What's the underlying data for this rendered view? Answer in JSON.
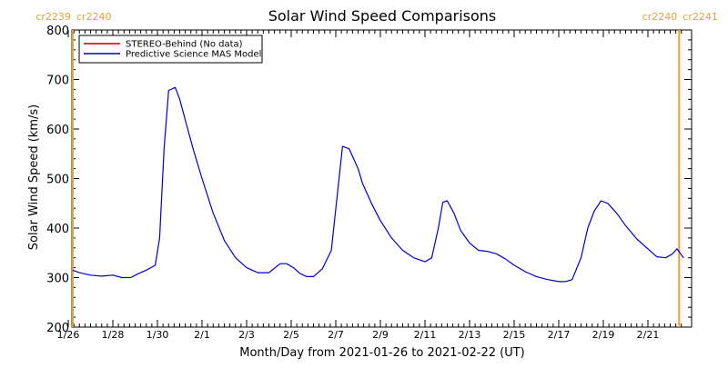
{
  "chart_data": {
    "type": "line",
    "title": "Solar Wind Speed Comparisons",
    "xlabel": "Month/Day from 2021-01-26 to 2021-02-22 (UT)",
    "ylabel": "Solar Wind Speed (km/s)",
    "ylim": [
      200,
      800
    ],
    "xlim_days": [
      0,
      27.6
    ],
    "y_ticks": [
      "200",
      "300",
      "400",
      "500",
      "600",
      "700",
      "800"
    ],
    "x_ticks": [
      {
        "day": 0,
        "label": "1/26"
      },
      {
        "day": 2,
        "label": "1/28"
      },
      {
        "day": 4,
        "label": "1/30"
      },
      {
        "day": 6,
        "label": "2/1"
      },
      {
        "day": 8,
        "label": "2/3"
      },
      {
        "day": 10,
        "label": "2/5"
      },
      {
        "day": 12,
        "label": "2/7"
      },
      {
        "day": 14,
        "label": "2/9"
      },
      {
        "day": 16,
        "label": "2/11"
      },
      {
        "day": 18,
        "label": "2/13"
      },
      {
        "day": 20,
        "label": "2/15"
      },
      {
        "day": 22,
        "label": "2/17"
      },
      {
        "day": 24,
        "label": "2/19"
      },
      {
        "day": 26,
        "label": "2/21"
      }
    ],
    "carrington_markers": [
      {
        "day": 0.2,
        "left": "cr2239",
        "right": "cr2240"
      },
      {
        "day": 27.4,
        "left": "cr2240",
        "right": "cr2241"
      }
    ],
    "legend_position": "top-left",
    "series": [
      {
        "name": "STEREO-Behind (No data)",
        "color": "#c00000",
        "x": [],
        "y": []
      },
      {
        "name": "Predictive Science MAS Model",
        "color": "#0000cc",
        "x": [
          0.2,
          0.5,
          1.0,
          1.5,
          2.0,
          2.4,
          2.8,
          3.1,
          3.5,
          3.9,
          4.1,
          4.3,
          4.5,
          4.8,
          5.0,
          5.3,
          5.6,
          6.0,
          6.5,
          7.0,
          7.5,
          8.0,
          8.5,
          9.0,
          9.5,
          9.8,
          10.1,
          10.4,
          10.7,
          11.0,
          11.4,
          11.8,
          12.1,
          12.3,
          12.6,
          12.8,
          13.0,
          13.2,
          13.6,
          14.0,
          14.5,
          15.0,
          15.5,
          16.0,
          16.3,
          16.6,
          16.8,
          17.0,
          17.3,
          17.6,
          18.0,
          18.4,
          18.8,
          19.2,
          19.6,
          20.0,
          20.5,
          21.0,
          21.5,
          22.0,
          22.3,
          22.6,
          23.0,
          23.3,
          23.6,
          23.9,
          24.2,
          24.6,
          25.0,
          25.5,
          26.0,
          26.4,
          26.8,
          27.1,
          27.3,
          27.6
        ],
        "y": [
          315,
          310,
          305,
          303,
          305,
          300,
          300,
          307,
          315,
          325,
          380,
          560,
          678,
          684,
          660,
          610,
          560,
          500,
          430,
          375,
          340,
          320,
          310,
          310,
          328,
          328,
          320,
          308,
          302,
          302,
          318,
          355,
          480,
          565,
          560,
          540,
          520,
          490,
          450,
          415,
          380,
          355,
          340,
          332,
          340,
          400,
          452,
          455,
          430,
          395,
          370,
          355,
          353,
          348,
          338,
          325,
          312,
          302,
          296,
          292,
          292,
          296,
          340,
          400,
          435,
          455,
          450,
          430,
          405,
          378,
          358,
          342,
          340,
          348,
          358,
          340
        ]
      }
    ]
  }
}
